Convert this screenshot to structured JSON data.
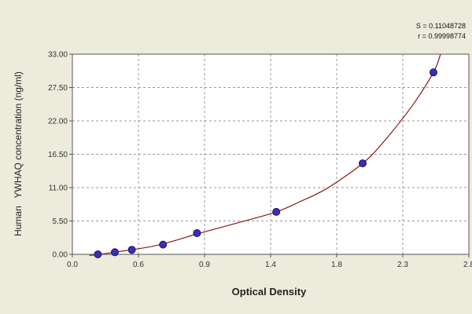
{
  "chart_data": {
    "type": "scatter",
    "title": "",
    "xlabel": "Optical Density",
    "ylabel": "Human   YWHAQ concentration (ng/ml)",
    "xlim": [
      0.0,
      2.8
    ],
    "ylim": [
      0.0,
      33.0
    ],
    "x_ticks": [
      "0.0",
      "0.6",
      "0.9",
      "1.4",
      "1.8",
      "2.3",
      "2.8"
    ],
    "y_ticks": [
      "0.00",
      "5.50",
      "11.00",
      "16.50",
      "22.00",
      "27.50",
      "33.00"
    ],
    "grid": true,
    "legend": "none",
    "series": [
      {
        "x": [
          0.18,
          0.3,
          0.42,
          0.64,
          0.88,
          1.44,
          2.05,
          2.55
        ],
        "y": [
          0.0,
          0.35,
          0.75,
          1.6,
          3.5,
          7.0,
          15.0,
          30.0
        ]
      }
    ],
    "fit_curve": {
      "x": [
        0.12,
        0.3,
        0.6,
        0.9,
        1.2,
        1.44,
        1.6,
        1.8,
        2.05,
        2.2,
        2.4,
        2.55,
        2.6
      ],
      "y": [
        -0.2,
        0.35,
        1.5,
        3.5,
        5.4,
        7.0,
        8.6,
        10.9,
        15.0,
        18.6,
        24.5,
        30.0,
        33.0
      ]
    },
    "stats": {
      "s": "S = 0.11048728",
      "r": "r = 0.99998774"
    },
    "colors": {
      "background": "#ecebdc",
      "plot_area": "#ffffff",
      "grid": "#999999",
      "curve": "#8b1a1a",
      "point_fill": "#3a2fb0",
      "point_stroke": "#1a1470"
    }
  }
}
